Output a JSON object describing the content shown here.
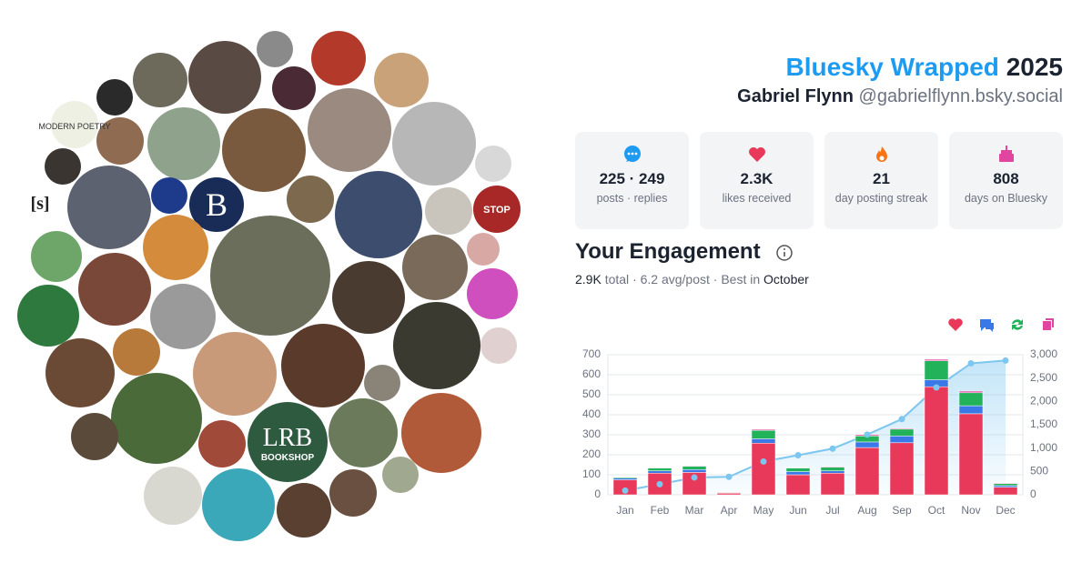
{
  "header": {
    "title": "Bluesky Wrapped",
    "year": "2025",
    "name": "Gabriel Flynn",
    "handle": "@gabrielflynn.bsky.social"
  },
  "avatars": [
    "MODERN POETRY",
    "[s]",
    "B",
    "STOP",
    "LRB",
    "BOOKSHOP"
  ],
  "stats": [
    {
      "value": "225 · 249",
      "label": "posts · replies"
    },
    {
      "value": "2.3K",
      "label": "likes received"
    },
    {
      "value": "21",
      "label": "day posting streak"
    },
    {
      "value": "808",
      "label": "days on Bluesky"
    }
  ],
  "engagement": {
    "title": "Your Engagement",
    "total": "2.9K",
    "middle": "total · 6.2 avg/post · Best in",
    "best": "October"
  },
  "chart_data": {
    "type": "stacked-bar-line",
    "categories": [
      "Jan",
      "Feb",
      "Mar",
      "Apr",
      "May",
      "Jun",
      "Jul",
      "Aug",
      "Sep",
      "Oct",
      "Nov",
      "Dec"
    ],
    "series": [
      {
        "color": "#e8395a",
        "values": [
          75,
          108,
          112,
          8,
          258,
          100,
          108,
          236,
          260,
          540,
          405,
          38
        ]
      },
      {
        "color": "#3b78e7",
        "values": [
          8,
          12,
          14,
          3,
          22,
          16,
          12,
          28,
          34,
          35,
          40,
          8
        ]
      },
      {
        "color": "#22b35a",
        "values": [
          5,
          14,
          16,
          2,
          42,
          18,
          18,
          30,
          34,
          95,
          65,
          10
        ]
      },
      {
        "color": "#e2459f",
        "values": [
          2,
          2,
          3,
          1,
          5,
          2,
          3,
          6,
          4,
          7,
          8,
          3
        ]
      },
      {
        "color": "#7cc6ef",
        "axis": "y2",
        "values": [
          90,
          226,
          371,
          385,
          712,
          848,
          989,
          1289,
          1621,
          2298,
          2816,
          2875
        ]
      }
    ],
    "ylim": [
      0,
      700
    ],
    "yticks": [
      0,
      100,
      200,
      300,
      400,
      500,
      600,
      700
    ],
    "y2lim": [
      0,
      3000
    ],
    "y2ticks": [
      0,
      500,
      {
        "value": 1000,
        "label": "1,000"
      },
      {
        "value": 1500,
        "label": "1,500"
      },
      {
        "value": 2000,
        "label": "2,000"
      },
      {
        "value": 2500,
        "label": "2,500"
      },
      {
        "value": 3000,
        "label": "3,000"
      }
    ],
    "grid": true
  }
}
